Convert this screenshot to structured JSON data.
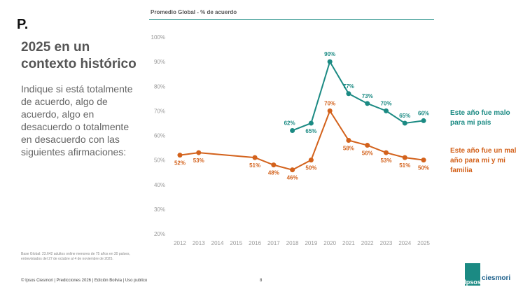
{
  "slide": {
    "logo_mark": "P.",
    "heading": "2025 en un contexto histórico",
    "question": "Indique si está totalmente de acuerdo, algo de acuerdo, algo en desacuerdo o totalmente en desacuerdo con las siguientes afirmaciones:",
    "base_note": "Base Global: 23.642 adultos online menores de 75 años en 30 países, entrevistados del 27 de octubre al 4 de noviembre de 2025.",
    "footer": "© Ipsos Ciesmori | Predicciones 2026 | Edición Bolivia | Uso publico",
    "page_number": "8",
    "brand_left": "Ipsos",
    "brand_right": "ciesmori"
  },
  "chart_data": {
    "type": "line",
    "title": "Promedio Global - % de acuerdo",
    "xlim": [
      2011.5,
      2025.5
    ],
    "xticks": [
      2012,
      2013,
      2014,
      2015,
      2016,
      2017,
      2018,
      2019,
      2020,
      2021,
      2022,
      2023,
      2024,
      2025
    ],
    "ylim": [
      20,
      100
    ],
    "yticks": [
      {
        "value": 20,
        "label": "20%"
      },
      {
        "value": 30,
        "label": "30%"
      },
      {
        "value": 40,
        "label": "40%"
      },
      {
        "value": 50,
        "label": "50%"
      },
      {
        "value": 60,
        "label": "60%"
      },
      {
        "value": 70,
        "label": "70%"
      },
      {
        "value": 80,
        "label": "80%"
      },
      {
        "value": 90,
        "label": "90%"
      },
      {
        "value": 100,
        "label": "100%"
      }
    ],
    "grid": false,
    "series": [
      {
        "name": "Este año fue malo para mi país",
        "color": "#1b8a83",
        "x": [
          2018,
          2019,
          2020,
          2021,
          2022,
          2023,
          2024,
          2025
        ],
        "values": [
          62,
          65,
          90,
          77,
          73,
          70,
          65,
          66
        ],
        "value_labels": [
          "62%",
          "65%",
          "90%",
          "77%",
          "73%",
          "70%",
          "65%",
          "66%"
        ]
      },
      {
        "name": "Este año fue un mal año para mi y mi familia",
        "color": "#d3621c",
        "x": [
          2012,
          2013,
          2016,
          2017,
          2018,
          2019,
          2020,
          2021,
          2022,
          2023,
          2024,
          2025
        ],
        "values": [
          52,
          53,
          51,
          48,
          46,
          50,
          70,
          58,
          56,
          53,
          51,
          50
        ],
        "value_labels": [
          "52%",
          "53%",
          "51%",
          "48%",
          "46%",
          "50%",
          "70%",
          "58%",
          "56%",
          "53%",
          "51%",
          "50%"
        ]
      }
    ]
  }
}
